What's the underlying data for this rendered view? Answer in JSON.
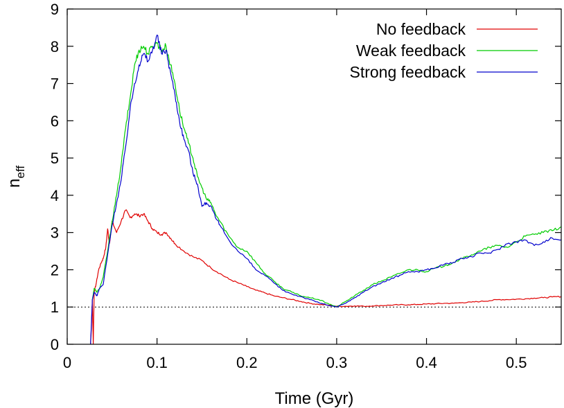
{
  "chart_data": {
    "type": "line",
    "title": "",
    "xlabel": "Time (Gyr)",
    "ylabel_main": "n",
    "ylabel_sub": "eff",
    "xlim": [
      0,
      0.55
    ],
    "ylim": [
      0,
      9
    ],
    "xticks": [
      "0",
      "0.1",
      "0.2",
      "0.3",
      "0.4",
      "0.5"
    ],
    "xtick_values": [
      0,
      0.1,
      0.2,
      0.3,
      0.4,
      0.5
    ],
    "yticks": [
      "0",
      "1",
      "2",
      "3",
      "4",
      "5",
      "6",
      "7",
      "8",
      "9"
    ],
    "ytick_values": [
      0,
      1,
      2,
      3,
      4,
      5,
      6,
      7,
      8,
      9
    ],
    "grid": false,
    "legend_position": "top-right",
    "reference_line": {
      "y": 1,
      "style": "dotted",
      "color": "#000000"
    },
    "series": [
      {
        "name": "No feedback",
        "color": "#e00000",
        "x": [
          0.026,
          0.027,
          0.028,
          0.029,
          0.03,
          0.032,
          0.035,
          0.038,
          0.04,
          0.043,
          0.045,
          0.047,
          0.05,
          0.055,
          0.06,
          0.065,
          0.07,
          0.075,
          0.08,
          0.085,
          0.09,
          0.095,
          0.1,
          0.105,
          0.11,
          0.115,
          0.12,
          0.13,
          0.14,
          0.15,
          0.16,
          0.17,
          0.18,
          0.19,
          0.2,
          0.21,
          0.22,
          0.23,
          0.24,
          0.25,
          0.26,
          0.27,
          0.28,
          0.29,
          0.3,
          0.31,
          0.32,
          0.33,
          0.34,
          0.35,
          0.36,
          0.37,
          0.38,
          0.39,
          0.4,
          0.41,
          0.42,
          0.43,
          0.44,
          0.45,
          0.46,
          0.47,
          0.48,
          0.49,
          0.5,
          0.51,
          0.52,
          0.53,
          0.54,
          0.55
        ],
        "y": [
          0.0,
          0.5,
          1.2,
          0.0,
          1.4,
          1.6,
          2.0,
          2.2,
          2.3,
          2.6,
          3.1,
          2.7,
          3.3,
          3.0,
          3.3,
          3.6,
          3.4,
          3.5,
          3.45,
          3.5,
          3.3,
          3.1,
          3.0,
          2.95,
          3.0,
          2.85,
          2.7,
          2.5,
          2.35,
          2.25,
          2.05,
          1.9,
          1.75,
          1.65,
          1.55,
          1.45,
          1.38,
          1.3,
          1.25,
          1.2,
          1.15,
          1.1,
          1.07,
          1.05,
          1.02,
          1.02,
          1.03,
          1.02,
          1.03,
          1.04,
          1.05,
          1.06,
          1.06,
          1.07,
          1.08,
          1.09,
          1.1,
          1.1,
          1.12,
          1.13,
          1.15,
          1.17,
          1.2,
          1.2,
          1.21,
          1.22,
          1.24,
          1.25,
          1.27,
          1.28
        ]
      },
      {
        "name": "Weak feedback",
        "color": "#00cc00",
        "x": [
          0.028,
          0.03,
          0.033,
          0.036,
          0.04,
          0.045,
          0.05,
          0.055,
          0.06,
          0.065,
          0.07,
          0.075,
          0.08,
          0.085,
          0.09,
          0.095,
          0.1,
          0.105,
          0.11,
          0.115,
          0.12,
          0.125,
          0.13,
          0.135,
          0.14,
          0.145,
          0.15,
          0.155,
          0.16,
          0.165,
          0.17,
          0.18,
          0.19,
          0.2,
          0.21,
          0.22,
          0.23,
          0.24,
          0.25,
          0.26,
          0.27,
          0.28,
          0.29,
          0.3,
          0.31,
          0.32,
          0.33,
          0.34,
          0.35,
          0.36,
          0.37,
          0.38,
          0.39,
          0.4,
          0.41,
          0.42,
          0.43,
          0.44,
          0.45,
          0.46,
          0.47,
          0.48,
          0.49,
          0.5,
          0.51,
          0.52,
          0.53,
          0.54,
          0.55
        ],
        "y": [
          1.2,
          1.5,
          1.4,
          1.5,
          1.8,
          2.5,
          3.3,
          4.0,
          4.8,
          5.8,
          6.6,
          7.5,
          7.9,
          8.0,
          7.8,
          8.0,
          8.1,
          7.9,
          8.0,
          7.5,
          7.0,
          6.3,
          5.8,
          5.4,
          5.0,
          4.5,
          4.2,
          3.9,
          3.8,
          3.5,
          3.3,
          2.9,
          2.6,
          2.5,
          2.2,
          1.9,
          1.7,
          1.5,
          1.4,
          1.3,
          1.25,
          1.2,
          1.1,
          1.0,
          1.15,
          1.3,
          1.45,
          1.6,
          1.7,
          1.8,
          1.9,
          2.0,
          2.0,
          1.95,
          2.05,
          2.1,
          2.2,
          2.3,
          2.4,
          2.5,
          2.6,
          2.65,
          2.6,
          2.75,
          2.9,
          2.95,
          3.0,
          3.05,
          3.15
        ]
      },
      {
        "name": "Strong feedback",
        "color": "#0000cc",
        "x": [
          0.026,
          0.028,
          0.03,
          0.033,
          0.036,
          0.04,
          0.045,
          0.05,
          0.055,
          0.06,
          0.065,
          0.07,
          0.075,
          0.08,
          0.085,
          0.09,
          0.095,
          0.1,
          0.105,
          0.11,
          0.115,
          0.12,
          0.125,
          0.13,
          0.135,
          0.14,
          0.145,
          0.15,
          0.155,
          0.16,
          0.165,
          0.17,
          0.18,
          0.19,
          0.2,
          0.21,
          0.22,
          0.23,
          0.24,
          0.25,
          0.26,
          0.27,
          0.28,
          0.29,
          0.3,
          0.31,
          0.32,
          0.33,
          0.34,
          0.35,
          0.36,
          0.37,
          0.38,
          0.39,
          0.4,
          0.41,
          0.42,
          0.43,
          0.44,
          0.45,
          0.46,
          0.47,
          0.48,
          0.49,
          0.5,
          0.51,
          0.52,
          0.53,
          0.54,
          0.55
        ],
        "y": [
          0.0,
          1.2,
          1.4,
          1.3,
          1.5,
          1.6,
          2.4,
          3.2,
          3.8,
          4.4,
          5.3,
          6.3,
          7.0,
          7.5,
          7.8,
          7.6,
          7.9,
          8.3,
          7.8,
          7.9,
          7.3,
          6.7,
          6.0,
          5.5,
          5.2,
          4.6,
          4.3,
          3.7,
          3.8,
          3.7,
          3.4,
          3.2,
          2.8,
          2.5,
          2.3,
          2.0,
          1.85,
          1.65,
          1.45,
          1.35,
          1.28,
          1.2,
          1.12,
          1.05,
          1.0,
          1.1,
          1.25,
          1.4,
          1.55,
          1.65,
          1.75,
          1.85,
          1.95,
          1.95,
          2.0,
          2.05,
          2.15,
          2.2,
          2.3,
          2.35,
          2.45,
          2.45,
          2.55,
          2.7,
          2.75,
          2.8,
          2.65,
          2.75,
          2.85,
          2.8
        ]
      }
    ]
  }
}
